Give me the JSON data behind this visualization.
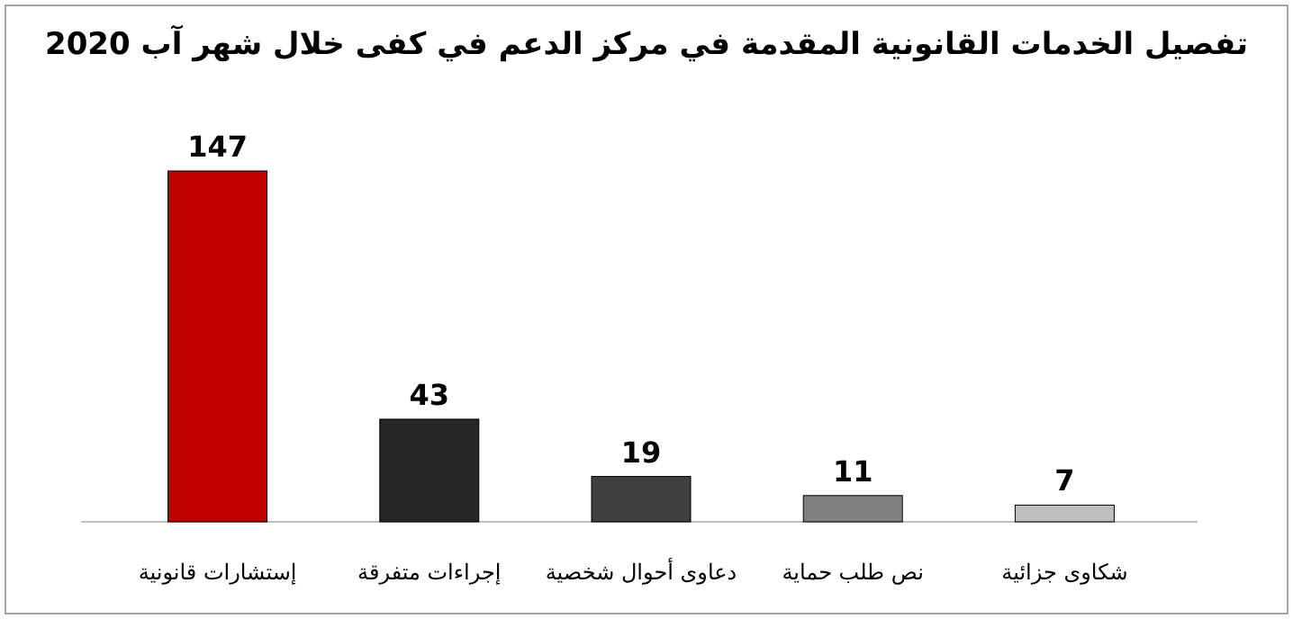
{
  "chart_data": {
    "type": "bar",
    "title": "تفصيل الخدمات القانونية المقدمة في مركز الدعم في كفى خلال شهر آب 2020",
    "categories": [
      "إستشارات قانونية",
      "إجراءات متفرقة",
      "دعاوى أحوال شخصية",
      "نص طلب حماية",
      "شكاوى جزائية"
    ],
    "values": [
      147,
      43,
      19,
      11,
      7
    ],
    "colors": [
      "#c00000",
      "#262626",
      "#404040",
      "#808080",
      "#bfbfbf"
    ],
    "data_labels": true
  }
}
